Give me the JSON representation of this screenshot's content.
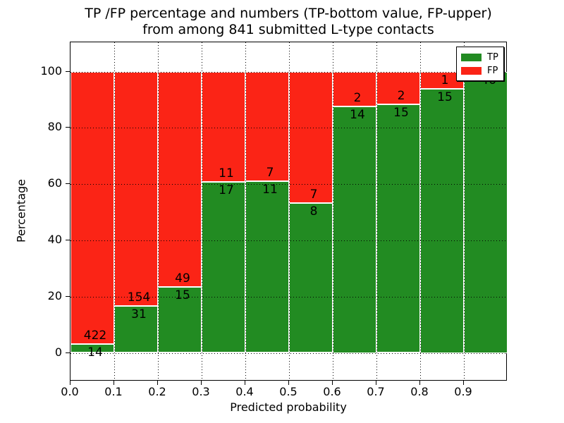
{
  "chart_data": {
    "type": "bar",
    "stacked": true,
    "title_line1": "TP /FP percentage and numbers (TP-bottom value, FP-upper)",
    "title_line2": "from among 841 submitted L-type contacts",
    "xlabel": "Predicted probability",
    "ylabel": "Percentage",
    "total_contacts": 841,
    "legend_position": "upper right",
    "grid": "dotted",
    "colors": {
      "tp": "#228b22",
      "fp": "#fb2416",
      "bar_edge": "#ffffff",
      "grid": "#000000"
    },
    "legend": [
      {
        "label": "TP",
        "color": "#228b22"
      },
      {
        "label": "FP",
        "color": "#fb2416"
      }
    ],
    "xlim": [
      0.0,
      1.0
    ],
    "ylim": [
      0,
      100
    ],
    "x_tick_labels": [
      "0.0",
      "0.1",
      "0.2",
      "0.3",
      "0.4",
      "0.5",
      "0.6",
      "0.7",
      "0.8",
      "0.9"
    ],
    "y_ticks": [
      0,
      20,
      40,
      60,
      80,
      100
    ],
    "y_tick_labels": [
      "0",
      "20",
      "40",
      "60",
      "80",
      "100"
    ],
    "bins": [
      {
        "range": "0.0-0.1",
        "tp": 14,
        "fp": 422,
        "tp_pct": 3.21
      },
      {
        "range": "0.1-0.2",
        "tp": 31,
        "fp": 154,
        "tp_pct": 16.76
      },
      {
        "range": "0.2-0.3",
        "tp": 15,
        "fp": 49,
        "tp_pct": 23.44
      },
      {
        "range": "0.3-0.4",
        "tp": 17,
        "fp": 11,
        "tp_pct": 60.71
      },
      {
        "range": "0.4-0.5",
        "tp": 11,
        "fp": 7,
        "tp_pct": 61.11
      },
      {
        "range": "0.5-0.6",
        "tp": 8,
        "fp": 7,
        "tp_pct": 53.33
      },
      {
        "range": "0.6-0.7",
        "tp": 14,
        "fp": 2,
        "tp_pct": 87.5
      },
      {
        "range": "0.7-0.8",
        "tp": 15,
        "fp": 2,
        "tp_pct": 88.24
      },
      {
        "range": "0.8-0.9",
        "tp": 15,
        "fp": 1,
        "tp_pct": 93.75
      },
      {
        "range": "0.9-1.0",
        "tp": 46,
        "fp": 0,
        "tp_pct": 100.0
      }
    ]
  }
}
